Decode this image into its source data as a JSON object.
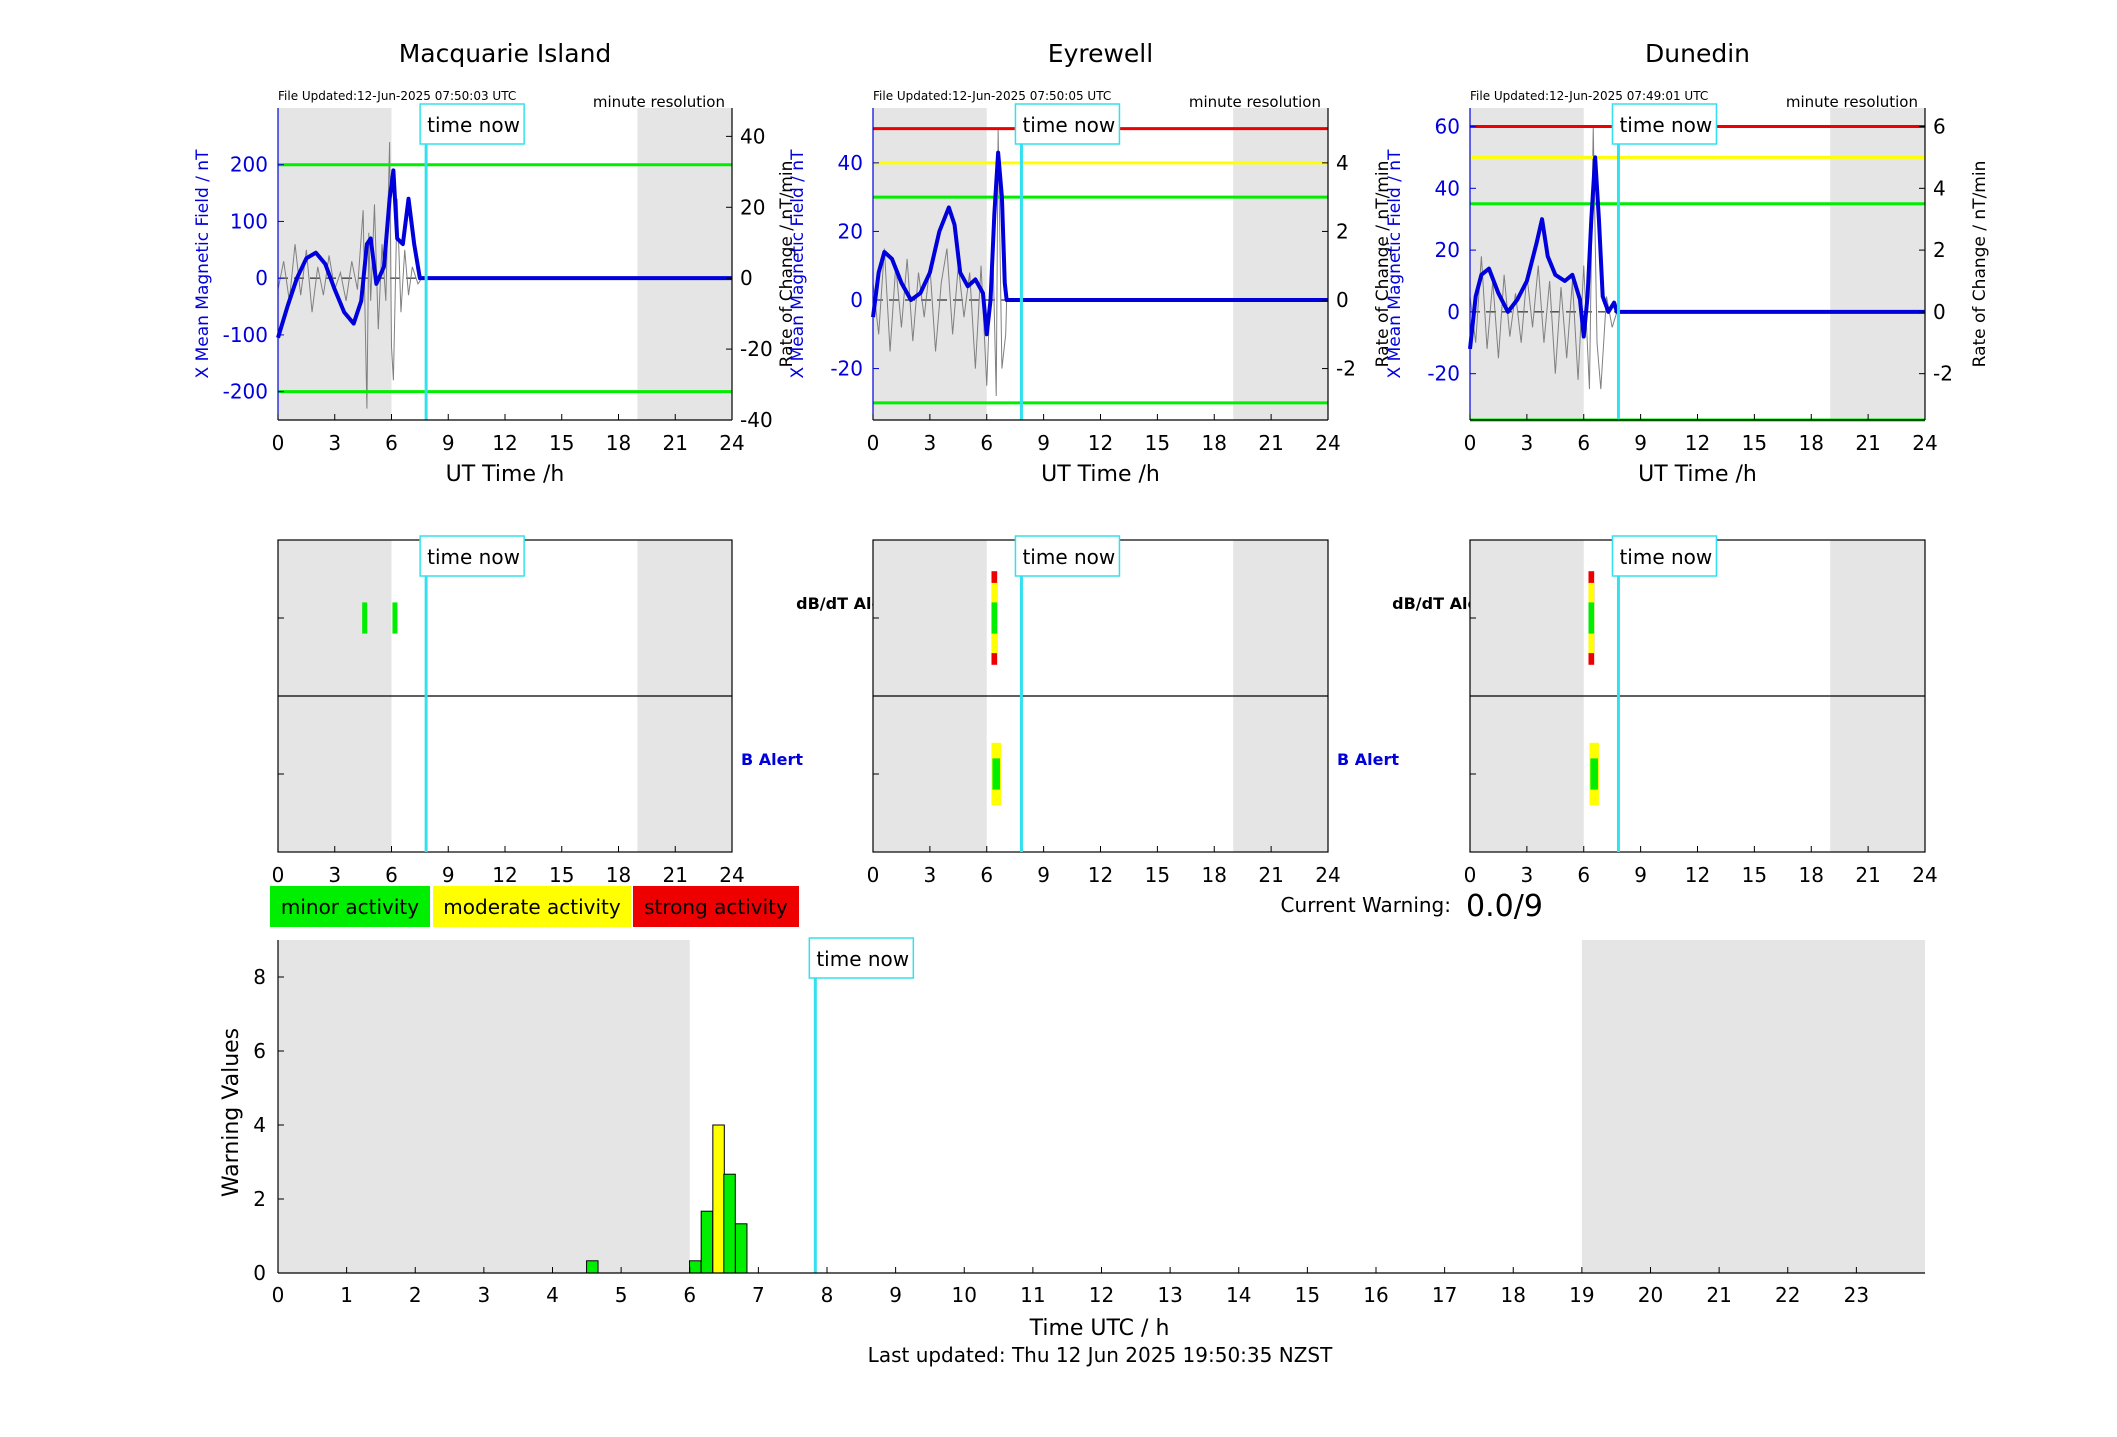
{
  "colors": {
    "blue": "#0000dd",
    "cyan": "#33e0ee",
    "green": "#00ee00",
    "yellow": "#ffff00",
    "red": "#ee0000",
    "shade": "#e5e5e5",
    "gray_trace": "#808080"
  },
  "stations": [
    {
      "title": "Macquarie Island",
      "file_updated": "File Updated:12-Jun-2025 07:50:03 UTC",
      "resolution": "minute resolution",
      "left_axis_label": "X Mean Magnetic Field / nT",
      "right_axis_label": "Rate of Change / nT/min",
      "x_axis_label": "UT Time /h",
      "left_ylim": [
        -250,
        300
      ],
      "left_ticks": [
        -200,
        -100,
        0,
        100,
        200
      ],
      "right_ylim": [
        -40,
        48
      ],
      "right_ticks": [
        -40,
        -20,
        0,
        20,
        40
      ],
      "thresholds": [
        {
          "value": 200,
          "color": "green"
        },
        {
          "value": -200,
          "color": "green"
        }
      ],
      "blue_trace": [
        [
          0,
          -105
        ],
        [
          0.5,
          -50
        ],
        [
          1,
          0
        ],
        [
          1.5,
          35
        ],
        [
          2,
          45
        ],
        [
          2.5,
          25
        ],
        [
          3,
          -20
        ],
        [
          3.5,
          -60
        ],
        [
          4,
          -80
        ],
        [
          4.4,
          -40
        ],
        [
          4.7,
          60
        ],
        [
          4.9,
          70
        ],
        [
          5.2,
          -10
        ],
        [
          5.6,
          20
        ],
        [
          5.9,
          140
        ],
        [
          6.1,
          190
        ],
        [
          6.3,
          70
        ],
        [
          6.6,
          60
        ],
        [
          6.9,
          140
        ],
        [
          7.2,
          60
        ],
        [
          7.5,
          0
        ],
        [
          24,
          0
        ]
      ],
      "gray_trace": [
        [
          0,
          -20
        ],
        [
          0.3,
          30
        ],
        [
          0.6,
          -40
        ],
        [
          0.9,
          60
        ],
        [
          1.2,
          -30
        ],
        [
          1.5,
          50
        ],
        [
          1.8,
          -60
        ],
        [
          2.1,
          20
        ],
        [
          2.4,
          -30
        ],
        [
          2.7,
          40
        ],
        [
          3,
          -20
        ],
        [
          3.3,
          10
        ],
        [
          3.6,
          -40
        ],
        [
          3.9,
          30
        ],
        [
          4.2,
          -20
        ],
        [
          4.5,
          120
        ],
        [
          4.6,
          -60
        ],
        [
          4.7,
          -230
        ],
        [
          4.8,
          80
        ],
        [
          4.9,
          -40
        ],
        [
          5.1,
          130
        ],
        [
          5.3,
          -90
        ],
        [
          5.5,
          60
        ],
        [
          5.7,
          -40
        ],
        [
          5.9,
          240
        ],
        [
          6.0,
          -120
        ],
        [
          6.1,
          -180
        ],
        [
          6.3,
          140
        ],
        [
          6.5,
          -60
        ],
        [
          6.7,
          50
        ],
        [
          6.9,
          -30
        ],
        [
          7.1,
          20
        ],
        [
          7.4,
          -10
        ],
        [
          7.6,
          0
        ]
      ],
      "alerts": {
        "dbdt": [
          {
            "start": 4.45,
            "end": 4.65,
            "color": "green"
          },
          {
            "start": 6.05,
            "end": 6.25,
            "color": "green"
          }
        ],
        "b": []
      }
    },
    {
      "title": "Eyrewell",
      "file_updated": "File Updated:12-Jun-2025 07:50:05 UTC",
      "resolution": "minute resolution",
      "left_axis_label": "X Mean Magnetic Field / nT",
      "right_axis_label": "Rate of Change / nT/min",
      "x_axis_label": "UT Time /h",
      "left_ylim": [
        -35,
        56
      ],
      "left_ticks": [
        -20,
        0,
        20,
        40
      ],
      "right_ylim": [
        -3.5,
        5.6
      ],
      "right_ticks": [
        -2,
        0,
        2,
        4
      ],
      "thresholds": [
        {
          "value": 50,
          "color": "red"
        },
        {
          "value": 40,
          "color": "yellow"
        },
        {
          "value": 30,
          "color": "green"
        },
        {
          "value": -30,
          "color": "green"
        }
      ],
      "blue_trace": [
        [
          0,
          -5
        ],
        [
          0.3,
          8
        ],
        [
          0.6,
          14
        ],
        [
          1,
          12
        ],
        [
          1.5,
          5
        ],
        [
          2,
          0
        ],
        [
          2.5,
          2
        ],
        [
          3,
          8
        ],
        [
          3.5,
          20
        ],
        [
          4,
          27
        ],
        [
          4.3,
          22
        ],
        [
          4.6,
          8
        ],
        [
          5,
          4
        ],
        [
          5.4,
          6
        ],
        [
          5.8,
          2
        ],
        [
          6.0,
          -10
        ],
        [
          6.2,
          0
        ],
        [
          6.4,
          25
        ],
        [
          6.6,
          43
        ],
        [
          6.8,
          30
        ],
        [
          6.95,
          5
        ],
        [
          7.05,
          0
        ],
        [
          24,
          0
        ]
      ],
      "gray_trace": [
        [
          0,
          5
        ],
        [
          0.3,
          -10
        ],
        [
          0.6,
          15
        ],
        [
          0.9,
          -15
        ],
        [
          1.2,
          10
        ],
        [
          1.5,
          -8
        ],
        [
          1.8,
          12
        ],
        [
          2.1,
          -12
        ],
        [
          2.4,
          8
        ],
        [
          2.7,
          -5
        ],
        [
          3,
          10
        ],
        [
          3.3,
          -15
        ],
        [
          3.6,
          5
        ],
        [
          3.9,
          15
        ],
        [
          4.2,
          -10
        ],
        [
          4.5,
          10
        ],
        [
          4.8,
          -5
        ],
        [
          5.1,
          8
        ],
        [
          5.4,
          -20
        ],
        [
          5.7,
          10
        ],
        [
          6.0,
          -25
        ],
        [
          6.3,
          20
        ],
        [
          6.5,
          -28
        ],
        [
          6.6,
          50
        ],
        [
          6.8,
          -20
        ],
        [
          7.0,
          -10
        ],
        [
          7.05,
          0
        ]
      ],
      "alerts": {
        "dbdt": [
          {
            "start": 6.25,
            "end": 6.55,
            "color": "red",
            "width": 0.6
          },
          {
            "start": 6.25,
            "end": 6.55,
            "color": "yellow",
            "width": 0.45
          },
          {
            "start": 6.25,
            "end": 6.55,
            "color": "green",
            "width": 0.2
          }
        ],
        "b": [
          {
            "start": 6.25,
            "end": 6.75,
            "color": "yellow",
            "width": 0.4
          },
          {
            "start": 6.3,
            "end": 6.7,
            "color": "green",
            "width": 0.2
          }
        ]
      }
    },
    {
      "title": "Dunedin",
      "file_updated": "File Updated:12-Jun-2025 07:49:01 UTC",
      "resolution": "minute resolution",
      "left_axis_label": "X Mean Magnetic Field / nT",
      "right_axis_label": "Rate of Change / nT/min",
      "x_axis_label": "UT Time /h",
      "left_ylim": [
        -35,
        66
      ],
      "left_ticks": [
        -20,
        0,
        20,
        40,
        60
      ],
      "right_ylim": [
        -3.5,
        6.6
      ],
      "right_ticks": [
        -2,
        0,
        2,
        4,
        6
      ],
      "thresholds": [
        {
          "value": 60,
          "color": "red"
        },
        {
          "value": 50,
          "color": "yellow"
        },
        {
          "value": 35,
          "color": "green"
        },
        {
          "value": -35,
          "color": "green"
        }
      ],
      "blue_trace": [
        [
          0,
          -12
        ],
        [
          0.3,
          5
        ],
        [
          0.6,
          12
        ],
        [
          1,
          14
        ],
        [
          1.5,
          6
        ],
        [
          2,
          0
        ],
        [
          2.5,
          4
        ],
        [
          3,
          10
        ],
        [
          3.5,
          22
        ],
        [
          3.8,
          30
        ],
        [
          4.1,
          18
        ],
        [
          4.5,
          12
        ],
        [
          5,
          10
        ],
        [
          5.4,
          12
        ],
        [
          5.8,
          4
        ],
        [
          6.0,
          -8
        ],
        [
          6.2,
          5
        ],
        [
          6.4,
          30
        ],
        [
          6.6,
          50
        ],
        [
          6.8,
          30
        ],
        [
          7.0,
          5
        ],
        [
          7.3,
          0
        ],
        [
          7.6,
          3
        ],
        [
          7.75,
          0
        ],
        [
          24,
          0
        ]
      ],
      "gray_trace": [
        [
          0,
          5
        ],
        [
          0.3,
          -10
        ],
        [
          0.6,
          18
        ],
        [
          0.9,
          -12
        ],
        [
          1.2,
          10
        ],
        [
          1.5,
          -15
        ],
        [
          1.8,
          12
        ],
        [
          2.1,
          -8
        ],
        [
          2.4,
          6
        ],
        [
          2.7,
          -10
        ],
        [
          3,
          12
        ],
        [
          3.3,
          -5
        ],
        [
          3.6,
          15
        ],
        [
          3.9,
          -10
        ],
        [
          4.2,
          10
        ],
        [
          4.5,
          -20
        ],
        [
          4.8,
          8
        ],
        [
          5.1,
          -15
        ],
        [
          5.4,
          10
        ],
        [
          5.7,
          -22
        ],
        [
          6.0,
          15
        ],
        [
          6.3,
          -25
        ],
        [
          6.5,
          60
        ],
        [
          6.7,
          -10
        ],
        [
          6.9,
          -25
        ],
        [
          7.2,
          5
        ],
        [
          7.5,
          -5
        ],
        [
          7.75,
          0
        ]
      ],
      "alerts": {
        "dbdt": [
          {
            "start": 6.25,
            "end": 6.55,
            "color": "red",
            "width": 0.6
          },
          {
            "start": 6.25,
            "end": 6.55,
            "color": "yellow",
            "width": 0.45
          },
          {
            "start": 6.25,
            "end": 6.55,
            "color": "green",
            "width": 0.2
          }
        ],
        "b": [
          {
            "start": 6.3,
            "end": 6.8,
            "color": "yellow",
            "width": 0.4
          },
          {
            "start": 6.35,
            "end": 6.75,
            "color": "green",
            "width": 0.2
          }
        ]
      }
    }
  ],
  "time_now": 7.83,
  "time_now_label": "time now",
  "shade_periods": [
    [
      0,
      6
    ],
    [
      19,
      24
    ]
  ],
  "x_ticks": [
    0,
    3,
    6,
    9,
    12,
    15,
    18,
    21,
    24
  ],
  "alert_labels": {
    "dbdt": "dB/dT Alert",
    "b": "B Alert"
  },
  "legend": [
    {
      "label": "minor activity",
      "color": "green"
    },
    {
      "label": "moderate activity",
      "color": "yellow"
    },
    {
      "label": "strong activity",
      "color": "red"
    }
  ],
  "current_warning": {
    "label": "Current Warning:",
    "value": "0.0/9"
  },
  "chart_data": {
    "type": "bar",
    "title": "",
    "xlabel": "Time UTC / h",
    "ylabel": "Warning Values",
    "xlim": [
      0,
      24
    ],
    "ylim": [
      0,
      9
    ],
    "x_ticks": [
      0,
      1,
      2,
      3,
      4,
      5,
      6,
      7,
      8,
      9,
      10,
      11,
      12,
      13,
      14,
      15,
      16,
      17,
      18,
      19,
      20,
      21,
      22,
      23
    ],
    "y_ticks": [
      0,
      2,
      4,
      6,
      8
    ],
    "bar_width": 0.167,
    "bars": [
      {
        "x": 4.58,
        "value": 0.33,
        "color": "green"
      },
      {
        "x": 6.08,
        "value": 0.33,
        "color": "green"
      },
      {
        "x": 6.25,
        "value": 1.67,
        "color": "green"
      },
      {
        "x": 6.42,
        "value": 4.0,
        "color": "yellow"
      },
      {
        "x": 6.58,
        "value": 2.67,
        "color": "green"
      },
      {
        "x": 6.75,
        "value": 1.33,
        "color": "green"
      }
    ]
  },
  "footer": "Last updated: Thu 12 Jun 2025 19:50:35 NZST"
}
